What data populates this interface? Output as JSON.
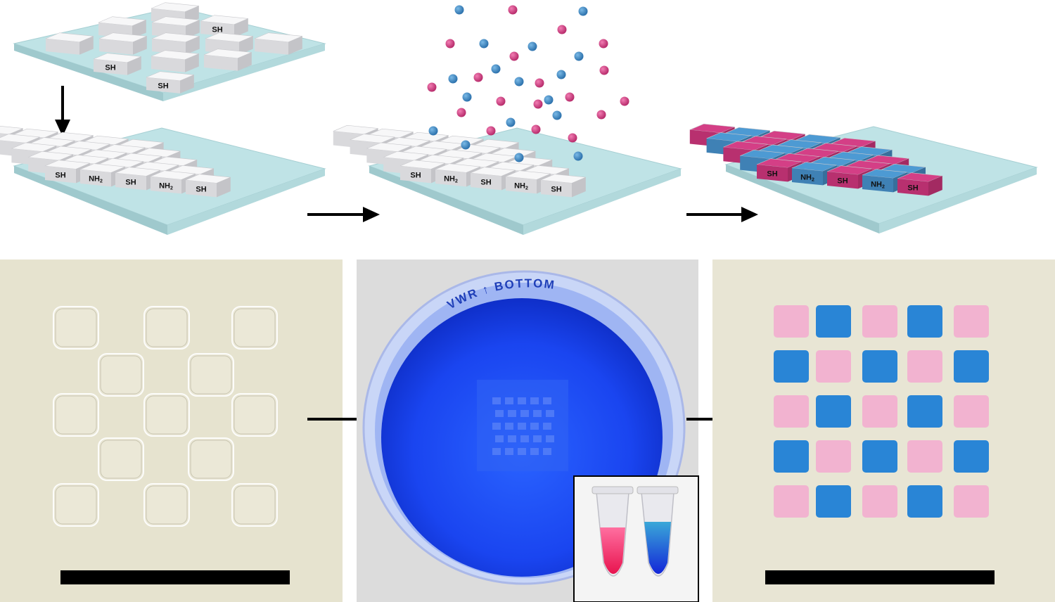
{
  "labels": {
    "thiol": "SH",
    "amine": "NH",
    "amine_sub": "2"
  },
  "petri_dish_text": "VWR ↑ BOTTOM",
  "colors": {
    "substrate": "#bfe3e6",
    "block_top": "#f7f7f8",
    "block_front": "#d9d9dc",
    "pink": "#d43f86",
    "pink_light": "#f2b3d0",
    "blue": "#4d9ad3",
    "blue_deep": "#1f7fd6",
    "photo_bg": "#e6e3cf",
    "dish_blue": "#1844ee"
  },
  "icons": [
    "arrow-down-icon",
    "arrow-right-icon",
    "scale-bar",
    "petri-dish",
    "microtubes"
  ]
}
